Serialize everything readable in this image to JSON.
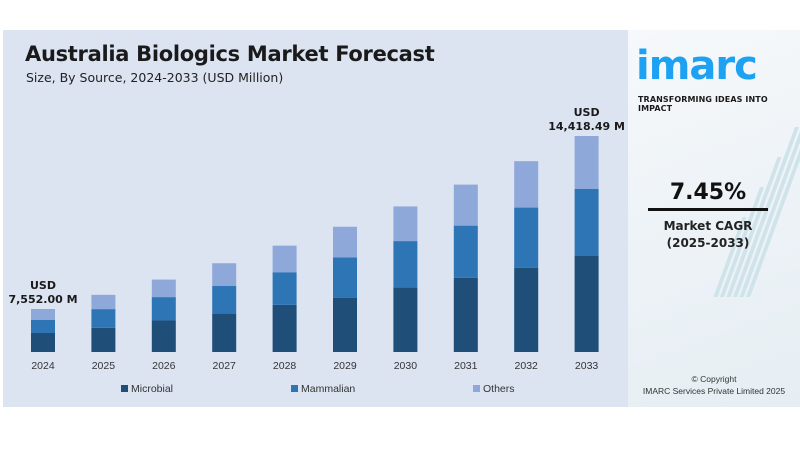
{
  "header": {
    "title": "Australia Biologics Market Forecast",
    "subtitle": "Size, By Source, 2024-2033 (USD Million)"
  },
  "colors": {
    "microbial": "#1f4e79",
    "mammalian": "#2e75b6",
    "others": "#8fa8da",
    "panel": "#dce4f2",
    "brand": "#1da1f2"
  },
  "chart_data": {
    "type": "bar",
    "stacked": true,
    "title": "Australia Biologics Market Forecast",
    "subtitle": "Size, By Source, 2024-2033 (USD Million)",
    "xlabel": "",
    "ylabel": "",
    "grid": false,
    "legend_position": "bottom",
    "categories": [
      "2024",
      "2025",
      "2026",
      "2027",
      "2028",
      "2029",
      "2030",
      "2031",
      "2032",
      "2033"
    ],
    "totals": [
      7552.0,
      8115,
      8719,
      9369,
      10067,
      10817,
      11623,
      12489,
      13419,
      14418.49
    ],
    "series": [
      {
        "name": "Microbial",
        "values": [
          3337,
          3433,
          3797,
          4052,
          4462,
          4694,
          5166,
          5542,
          5931,
          6408
        ]
      },
      {
        "name": "Mammalian",
        "values": [
          2283,
          2653,
          2813,
          2912,
          3089,
          3470,
          3690,
          3887,
          4226,
          4473
        ]
      },
      {
        "name": "Others",
        "values": [
          1932,
          2029,
          2109,
          2405,
          2516,
          2653,
          2767,
          3060,
          3262,
          3537
        ]
      }
    ],
    "annotations": [
      {
        "category": "2024",
        "line1": "USD",
        "line2": "7,552.00 M"
      },
      {
        "category": "2033",
        "line1": "USD",
        "line2": "14,418.49 M"
      }
    ]
  },
  "legend": [
    {
      "label": "Microbial",
      "color_key": "microbial"
    },
    {
      "label": "Mammalian",
      "color_key": "mammalian"
    },
    {
      "label": "Others",
      "color_key": "others"
    }
  ],
  "sidebar": {
    "logo_text": "imarc",
    "tagline": "TRANSFORMING IDEAS INTO IMPACT",
    "cagr_value": "7.45%",
    "cagr_label_line1": "Market CAGR",
    "cagr_label_line2": "(2025-2033)",
    "copyright_line1": "© Copyright",
    "copyright_line2": "IMARC Services Private Limited 2025"
  }
}
